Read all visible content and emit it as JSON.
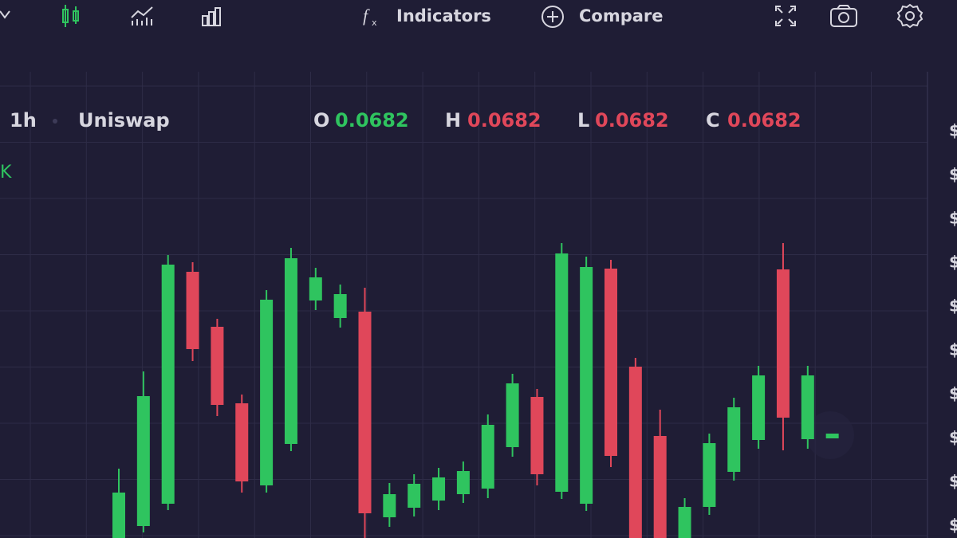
{
  "toolbar": {
    "indicators": "Indicators",
    "compare": "Compare"
  },
  "legend": {
    "interval": "1h",
    "pair": "Uniswap",
    "open_label": "O",
    "open": "0.0682",
    "high_label": "H",
    "high": "0.0682",
    "low_label": "L",
    "low": "0.0682",
    "close_label": "C",
    "close": "0.0682",
    "volume_suffix": "K"
  },
  "price_axis_labels": [
    "$",
    "$",
    "$",
    "$",
    "$",
    "$",
    "$",
    "$",
    "$",
    "$"
  ],
  "chart_data": {
    "type": "candlestick",
    "up_color": "#2fc45f",
    "down_color": "#e0475a",
    "candles": [
      {
        "open": 0,
        "high": 87,
        "low": 0,
        "close": 57
      },
      {
        "open": 15,
        "high": 209,
        "low": 7,
        "close": 178
      },
      {
        "open": 43,
        "high": 355,
        "low": 35,
        "close": 343
      },
      {
        "open": 334,
        "high": 346,
        "low": 222,
        "close": 237
      },
      {
        "open": 265,
        "high": 275,
        "low": 153,
        "close": 167
      },
      {
        "open": 169,
        "high": 180,
        "low": 57,
        "close": 71
      },
      {
        "open": 66,
        "high": 311,
        "low": 57,
        "close": 299
      },
      {
        "open": 118,
        "high": 364,
        "low": 109,
        "close": 351
      },
      {
        "open": 298,
        "high": 339,
        "low": 286,
        "close": 327
      },
      {
        "open": 276,
        "high": 318,
        "low": 264,
        "close": 306
      },
      {
        "open": 284,
        "high": 314,
        "low": 0,
        "close": 31
      },
      {
        "open": 26,
        "high": 69,
        "low": 14,
        "close": 55
      },
      {
        "open": 38,
        "high": 80,
        "low": 27,
        "close": 68
      },
      {
        "open": 47,
        "high": 88,
        "low": 35,
        "close": 76
      },
      {
        "open": 55,
        "high": 96,
        "low": 44,
        "close": 84
      },
      {
        "open": 62,
        "high": 155,
        "low": 50,
        "close": 142
      },
      {
        "open": 114,
        "high": 206,
        "low": 102,
        "close": 194
      },
      {
        "open": 177,
        "high": 187,
        "low": 66,
        "close": 80
      },
      {
        "open": 58,
        "high": 370,
        "low": 49,
        "close": 357
      },
      {
        "open": 43,
        "high": 353,
        "low": 34,
        "close": 340
      },
      {
        "open": 338,
        "high": 349,
        "low": 89,
        "close": 103
      },
      {
        "open": 215,
        "high": 226,
        "low": 0,
        "close": 0
      },
      {
        "open": 128,
        "high": 161,
        "low": 0,
        "close": 0
      },
      {
        "open": 0,
        "high": 50,
        "low": 0,
        "close": 39
      },
      {
        "open": 39,
        "high": 131,
        "low": 29,
        "close": 119
      },
      {
        "open": 83,
        "high": 176,
        "low": 72,
        "close": 164
      },
      {
        "open": 123,
        "high": 216,
        "low": 112,
        "close": 204
      },
      {
        "open": 337,
        "high": 370,
        "low": 110,
        "close": 151
      },
      {
        "open": 124,
        "high": 216,
        "low": 112,
        "close": 204
      },
      {
        "open": 128,
        "high": 128,
        "low": 128,
        "close": 128
      }
    ]
  }
}
